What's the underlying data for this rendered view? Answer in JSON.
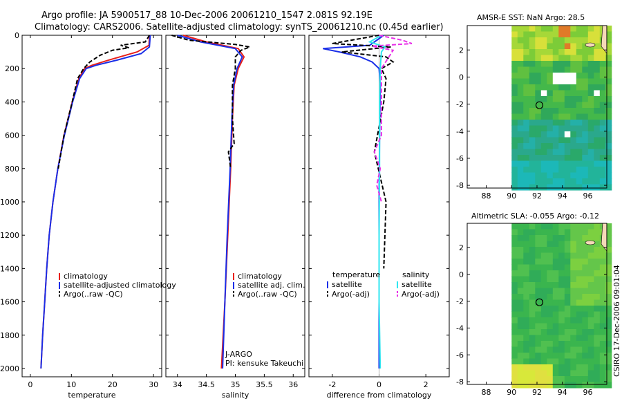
{
  "header": {
    "line1": "Argo profile: JA 5900517_88 10-Dec-2006 20061210_1547 2.081S 92.19E",
    "line2": "Climatology: CARS2006. Satellite-adjusted climatology: synTS_20061210.nc (0.45d earlier)"
  },
  "side_label": "CSIRO 17-Dec-2006 09:01:04",
  "colors": {
    "red": "#e8201a",
    "blue": "#1a2ee8",
    "black": "#000000",
    "cyan": "#2fe6f0",
    "magenta": "#e830e8"
  },
  "chart_data": [
    {
      "type": "line",
      "id": "temperature",
      "xlabel": "temperature",
      "xlim": [
        -2,
        32
      ],
      "xticks": [
        0,
        10,
        20,
        30
      ],
      "ylim": [
        2050,
        0
      ],
      "yticks": [
        0,
        200,
        400,
        600,
        800,
        1000,
        1200,
        1400,
        1600,
        1800,
        2000
      ],
      "series": [
        {
          "name": "climatology",
          "color": "red",
          "dash": "",
          "depth": [
            0,
            60,
            100,
            150,
            180,
            200,
            260,
            400,
            600,
            800,
            1000,
            1200,
            1400,
            1600,
            1800,
            2000
          ],
          "values": [
            29.0,
            28.9,
            26.0,
            19.0,
            15.0,
            13.2,
            11.8,
            10.2,
            8.2,
            6.7,
            5.5,
            4.6,
            4.0,
            3.5,
            3.0,
            2.6
          ]
        },
        {
          "name": "satellite-adjusted climatology",
          "color": "blue",
          "dash": "",
          "depth": [
            0,
            70,
            110,
            150,
            180,
            200,
            260,
            400,
            600,
            800,
            1000,
            1200,
            1400,
            1600,
            1800,
            2000
          ],
          "values": [
            29.2,
            29.0,
            27.0,
            21.0,
            16.0,
            13.6,
            12.0,
            10.3,
            8.3,
            6.7,
            5.5,
            4.6,
            4.0,
            3.5,
            3.0,
            2.6
          ]
        },
        {
          "name": "Argo(..raw -QC)",
          "color": "black",
          "dash": "6,3",
          "depth": [
            0,
            40,
            60,
            75,
            90,
            120,
            160,
            200,
            260,
            400,
            600,
            800
          ],
          "values": [
            29.0,
            28.0,
            22.0,
            24.0,
            20.0,
            17.0,
            14.5,
            13.0,
            11.5,
            10.2,
            8.2,
            6.8
          ]
        }
      ],
      "legend": {
        "location": "lower-right",
        "entries": [
          "climatology",
          "satellite-adjusted climatology",
          "Argo(..raw -QC)"
        ]
      }
    },
    {
      "type": "line",
      "id": "salinity",
      "xlabel": "salinity",
      "xlim": [
        33.8,
        36.2
      ],
      "xticks": [
        34,
        34.5,
        35,
        35.5,
        36
      ],
      "ylim": [
        2050,
        0
      ],
      "series": [
        {
          "name": "climatology",
          "color": "red",
          "dash": "",
          "depth": [
            0,
            40,
            80,
            130,
            200,
            300,
            500,
            800,
            1200,
            1600,
            2000
          ],
          "values": [
            34.1,
            34.5,
            35.05,
            35.15,
            35.05,
            34.98,
            34.95,
            34.92,
            34.87,
            34.82,
            34.76
          ]
        },
        {
          "name": "satellite adj. clim.",
          "color": "blue",
          "dash": "",
          "depth": [
            0,
            40,
            80,
            130,
            200,
            300,
            500,
            800,
            1200,
            1600,
            2000
          ],
          "values": [
            34.0,
            34.4,
            35.0,
            35.12,
            35.03,
            34.97,
            34.94,
            34.91,
            34.86,
            34.82,
            34.78
          ]
        },
        {
          "name": "Argo(..raw -QC)",
          "color": "black",
          "dash": "6,3",
          "depth": [
            0,
            30,
            55,
            70,
            90,
            130,
            200,
            300,
            500,
            650,
            700,
            800
          ],
          "values": [
            33.9,
            34.2,
            35.0,
            35.25,
            35.1,
            35.0,
            35.0,
            34.95,
            34.95,
            34.98,
            34.88,
            34.92
          ]
        }
      ],
      "legend": {
        "location": "lower-right",
        "entries": [
          "climatology",
          "satellite adj. clim.",
          "Argo(..raw -QC)"
        ]
      },
      "annotations": [
        "J-ARGO",
        "PI: kensuke Takeuchi"
      ]
    },
    {
      "type": "line",
      "id": "difference",
      "xlabel": "difference from climatology",
      "xlim": [
        -3,
        3
      ],
      "xticks": [
        -2,
        0,
        2
      ],
      "ylim": [
        2050,
        0
      ],
      "series": [
        {
          "name": "temperature satellite",
          "color": "blue",
          "dash": "",
          "depth": [
            0,
            60,
            80,
            100,
            130,
            160,
            200,
            300,
            600,
            1000,
            1500,
            2000
          ],
          "values": [
            0.2,
            -0.4,
            -2.4,
            -1.7,
            -0.8,
            -0.3,
            0.0,
            0.05,
            0.02,
            0.0,
            0.0,
            0.0
          ]
        },
        {
          "name": "temperature Argo(-adj)",
          "color": "black",
          "dash": "6,3",
          "depth": [
            0,
            50,
            70,
            100,
            130,
            160,
            200,
            260,
            400,
            700,
            1000,
            1400
          ],
          "values": [
            0.0,
            -2.0,
            0.5,
            -1.6,
            0.3,
            0.6,
            0.1,
            0.3,
            0.2,
            -0.2,
            0.3,
            0.2
          ]
        },
        {
          "name": "salinity satellite",
          "color": "cyan",
          "dash": "",
          "depth": [
            0,
            40,
            70,
            100,
            200,
            400,
            800,
            1200,
            1600,
            2000
          ],
          "values": [
            0.1,
            -0.4,
            0.25,
            0.1,
            0.05,
            0.02,
            0.02,
            0.0,
            0.0,
            0.05
          ]
        },
        {
          "name": "salinity Argo(-adj)",
          "color": "magenta",
          "dash": "6,3",
          "depth": [
            0,
            30,
            50,
            65,
            90,
            200,
            600,
            700,
            800,
            900,
            1000
          ],
          "values": [
            0.0,
            1.0,
            1.4,
            -0.3,
            0.6,
            0.1,
            0.1,
            -0.2,
            0.05,
            -0.1,
            0.1
          ]
        }
      ],
      "legend": {
        "location": "lower-right",
        "headers": [
          "temperature",
          "salinity"
        ],
        "entries": [
          "satellite",
          "Argo(-adj)",
          "satellite",
          "Argo(-adj)"
        ]
      }
    },
    {
      "type": "heatmap",
      "id": "sst_map",
      "title": "AMSR-E SST: NaN Argo: 28.5",
      "xlim": [
        86.5,
        97.5
      ],
      "ylim": [
        -8.2,
        3.8
      ],
      "xticks": [
        88,
        90,
        92,
        94,
        96
      ],
      "yticks": [
        -8,
        -6,
        -4,
        -2,
        0,
        2
      ],
      "marker": {
        "lon": 92.19,
        "lat": -2.081
      }
    },
    {
      "type": "heatmap",
      "id": "sla_map",
      "title": "Altimetric SLA: -0.055 Argo: -0.12",
      "xlim": [
        86.5,
        97.5
      ],
      "ylim": [
        -8.2,
        3.8
      ],
      "xticks": [
        88,
        90,
        92,
        94,
        96
      ],
      "yticks": [
        -8,
        -6,
        -4,
        -2,
        0,
        2
      ],
      "marker": {
        "lon": 92.19,
        "lat": -2.081
      }
    }
  ]
}
